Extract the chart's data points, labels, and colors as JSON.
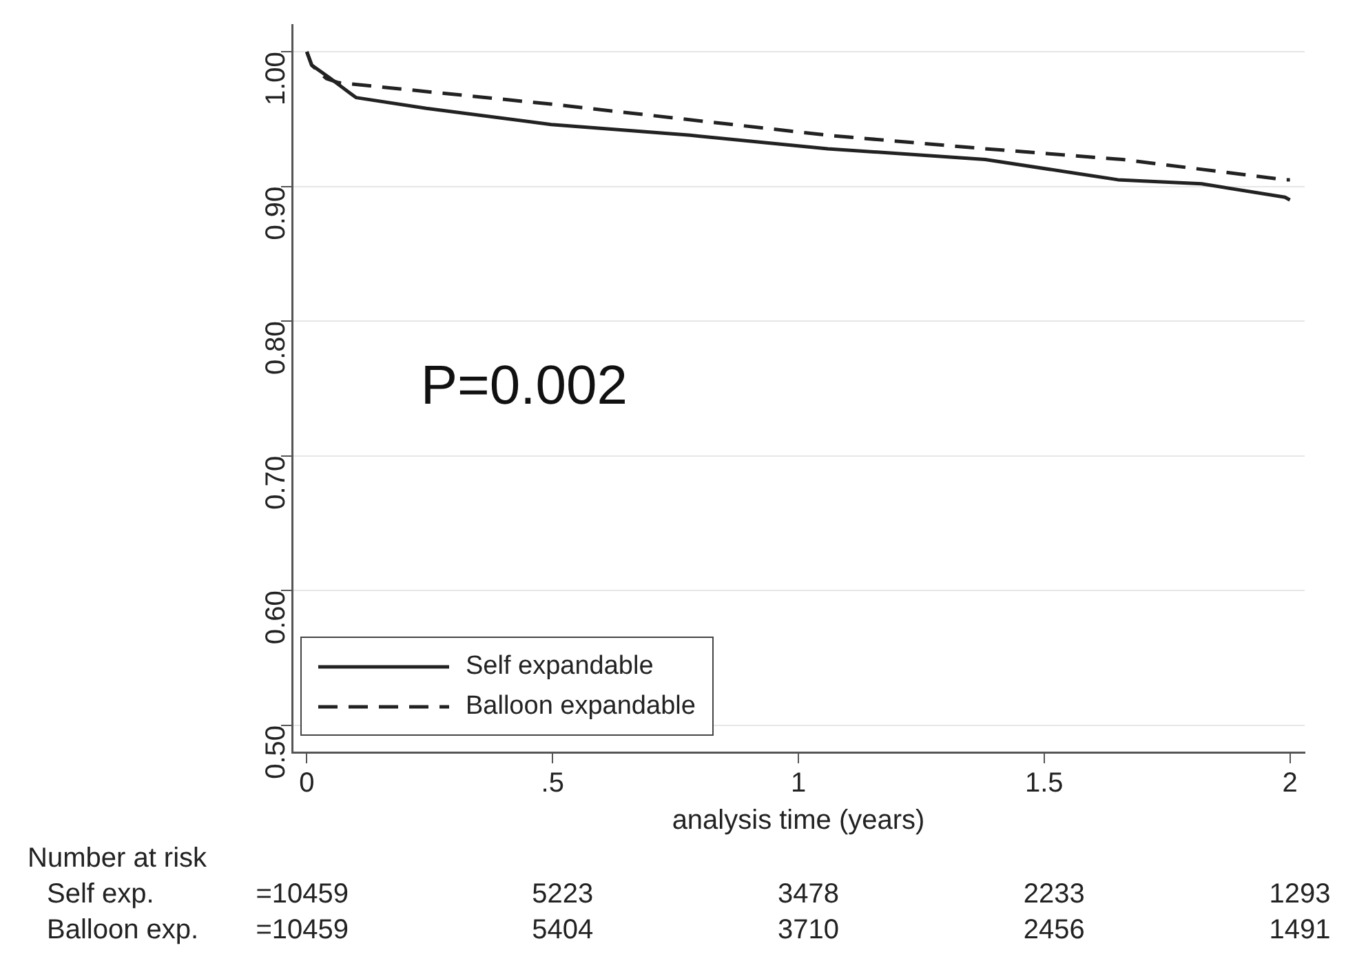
{
  "chart_data": {
    "type": "line",
    "xlabel": "analysis time (years)",
    "xlim": [
      -0.03,
      2.03
    ],
    "xticks": [
      0,
      {
        "value": 0.5,
        "label": ".5"
      },
      1,
      1.5,
      2
    ],
    "ylim": [
      0.48,
      1.02
    ],
    "yticks": [
      {
        "value": 0.5,
        "label": "0.50"
      },
      {
        "value": 0.6,
        "label": "0.60"
      },
      {
        "value": 0.7,
        "label": "0.70"
      },
      {
        "value": 0.8,
        "label": "0.80"
      },
      {
        "value": 0.9,
        "label": "0.90"
      },
      {
        "value": 1.0,
        "label": "1.00"
      }
    ],
    "grid": "y",
    "legend": "bottom left",
    "marker": "none",
    "series": [
      {
        "name": "Self expandable",
        "color": "#222222",
        "line_style": "solid",
        "x": [
          0,
          0.01,
          0.045,
          0.1,
          0.243,
          0.497,
          0.78,
          1.06,
          1.38,
          1.65,
          1.82,
          1.99,
          2.0
        ],
        "values": [
          1.0,
          0.99,
          0.981,
          0.966,
          0.958,
          0.946,
          0.938,
          0.928,
          0.92,
          0.905,
          0.902,
          0.892,
          0.89
        ]
      },
      {
        "name": "Balloon expandable",
        "color": "#222222",
        "line_style": "dashed",
        "x": [
          0,
          0.01,
          0.04,
          0.065,
          0.5,
          1.06,
          1.38,
          1.66,
          1.99,
          2.0
        ],
        "values": [
          1.0,
          0.99,
          0.98,
          0.977,
          0.961,
          0.938,
          0.928,
          0.92,
          0.905,
          0.905
        ]
      }
    ],
    "annotations": [
      "P=0.002",
      "Number at risk",
      "Self exp.",
      "=10459",
      "5223",
      "3478",
      "2233",
      "1293",
      "Balloon exp.",
      "=10459",
      "5404",
      "3710",
      "2456",
      "1491"
    ]
  }
}
